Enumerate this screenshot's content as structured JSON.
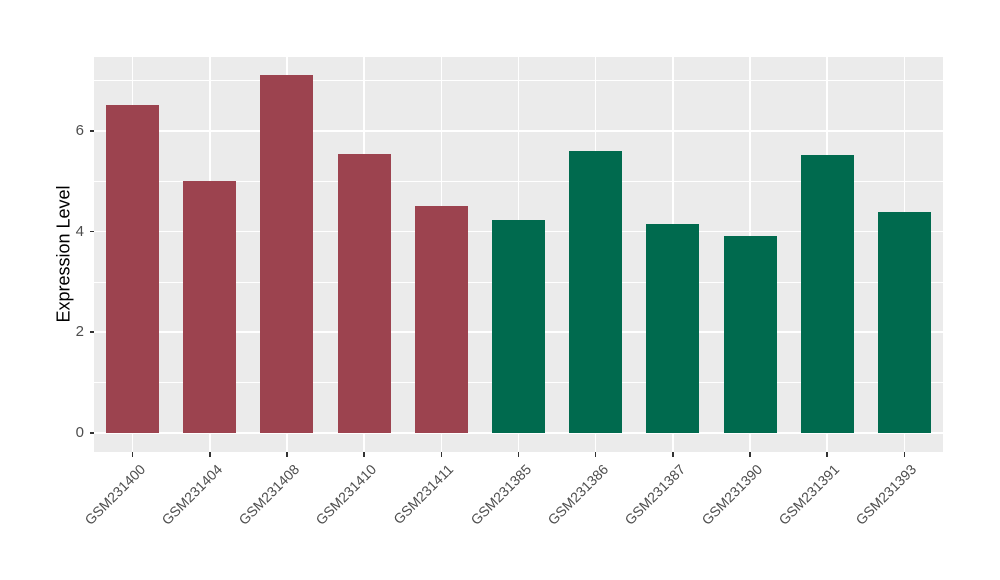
{
  "figure": {
    "background": "#FFFFFF",
    "panel_background": "#EBEBEB",
    "gridline_color": "#FFFFFF",
    "tick_mark_color": "#333333",
    "axis_text_color": "#4D4D4D",
    "axis_title_color": "#000000"
  },
  "chart_data": {
    "type": "bar",
    "title": "",
    "xlabel": "",
    "ylabel": "Expression Level",
    "categories": [
      "GSM231400",
      "GSM231404",
      "GSM231408",
      "GSM231410",
      "GSM231411",
      "GSM231385",
      "GSM231386",
      "GSM231387",
      "GSM231390",
      "GSM231391",
      "GSM231393"
    ],
    "values": [
      6.52,
      5.01,
      7.12,
      5.54,
      4.51,
      4.23,
      5.61,
      4.15,
      3.92,
      5.53,
      4.38
    ],
    "bar_colors": [
      "#9C434F",
      "#9C434F",
      "#9C434F",
      "#9C434F",
      "#9C434F",
      "#006A4E",
      "#006A4E",
      "#006A4E",
      "#006A4E",
      "#006A4E",
      "#006A4E"
    ],
    "yticks": [
      0,
      2,
      4,
      6
    ],
    "yticks_minor": [
      1,
      3,
      5,
      7
    ],
    "ylim": [
      -0.38,
      7.47
    ],
    "grid": true,
    "legend": "none",
    "x_tick_label_angle": 45
  }
}
